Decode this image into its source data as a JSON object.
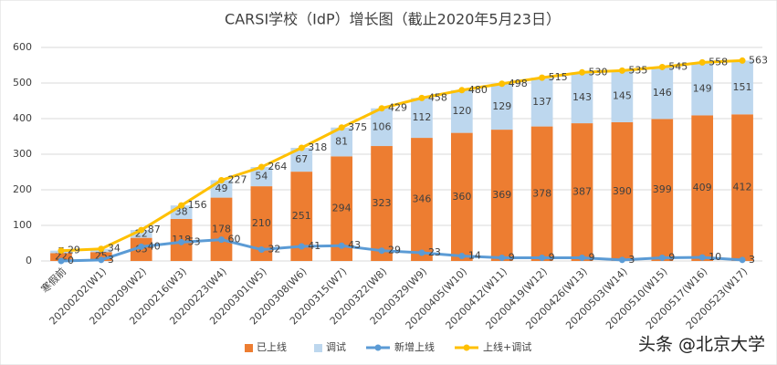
{
  "chart_data": {
    "type": "bar",
    "title": "CARSI学校（IdP）增长图（截止2020年5月23日）",
    "categories": [
      "寒假前",
      "20200202(W1)",
      "20200209(W2)",
      "20200216(W3)",
      "20200223(W4)",
      "20200301(W5)",
      "20200308(W6)",
      "20200315(W7)",
      "20200322(W8)",
      "20200329(W9)",
      "20200405(W10)",
      "20200412(W11)",
      "20200419(W12)",
      "20200426(W13)",
      "20200503(W14)",
      "20200510(W15)",
      "20200517(W16)",
      "20200523(W17)"
    ],
    "series": [
      {
        "name": "已上线",
        "type": "bar",
        "color": "#ed7d31",
        "values": [
          22,
          25,
          65,
          118,
          178,
          210,
          251,
          294,
          323,
          346,
          360,
          369,
          378,
          387,
          390,
          399,
          409,
          412
        ]
      },
      {
        "name": "调试",
        "type": "bar",
        "color": "#bdd7ee",
        "values": [
          7,
          9,
          22,
          38,
          49,
          54,
          67,
          81,
          106,
          112,
          120,
          129,
          137,
          143,
          145,
          146,
          149,
          151
        ]
      },
      {
        "name": "新增上线",
        "type": "line",
        "color": "#5b9bd5",
        "values": [
          0,
          3,
          40,
          53,
          60,
          32,
          41,
          43,
          29,
          23,
          14,
          9,
          9,
          9,
          3,
          9,
          10,
          3
        ]
      },
      {
        "name": "上线+调试",
        "type": "line",
        "color": "#ffc000",
        "values": [
          29,
          34,
          87,
          156,
          227,
          264,
          318,
          375,
          429,
          458,
          480,
          498,
          515,
          530,
          535,
          545,
          558,
          563
        ]
      }
    ],
    "ylim": [
      0,
      600
    ],
    "yticks": [
      0,
      100,
      200,
      300,
      400,
      500,
      600
    ],
    "grid": true,
    "legend": "bottom",
    "watermark": "头条 @北京大学"
  }
}
